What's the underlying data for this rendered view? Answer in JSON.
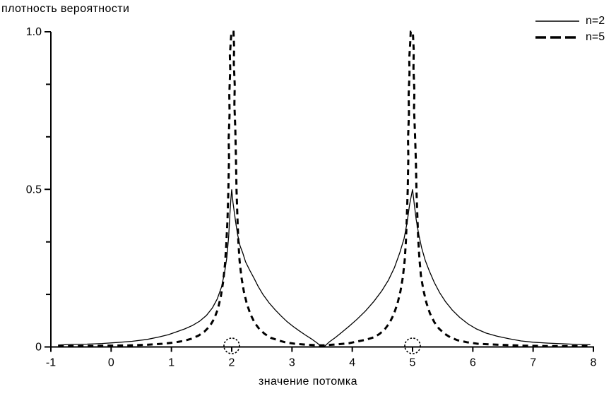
{
  "colors": {
    "foreground": "#000000",
    "background": "#ffffff"
  },
  "chart_data": {
    "type": "line",
    "title": "плотность вероятности",
    "xlabel": "значение потомка",
    "ylabel": "",
    "xlim": [
      -1,
      8
    ],
    "ylim": [
      0,
      1
    ],
    "grid": false,
    "legend_position": "top-right",
    "x_ticks": [
      -1,
      0,
      1,
      2,
      3,
      4,
      5,
      6,
      7,
      8
    ],
    "y_major_ticks": [
      0,
      0.5,
      1.0
    ],
    "y_major_tick_labels": [
      "0",
      "0.5",
      "1.0"
    ],
    "y_minor_ticks": [
      0.1667,
      0.3333,
      0.6667,
      0.8333
    ],
    "parent_markers": [
      2,
      5
    ],
    "peaks": [
      {
        "x": 2,
        "n2_height": 0.5,
        "n5_height": 1.0
      },
      {
        "x": 5,
        "n2_height": 0.5,
        "n5_height": 1.0
      }
    ],
    "series": [
      {
        "name": "n=2",
        "style": "solid",
        "points": [
          [
            -0.88,
            0.006
          ],
          [
            -0.65,
            0.008
          ],
          [
            -0.4,
            0.009
          ],
          [
            -0.15,
            0.011
          ],
          [
            0.1,
            0.014
          ],
          [
            0.35,
            0.018
          ],
          [
            0.6,
            0.024
          ],
          [
            0.8,
            0.032
          ],
          [
            0.95,
            0.039
          ],
          [
            1.1,
            0.049
          ],
          [
            1.22,
            0.057
          ],
          [
            1.35,
            0.068
          ],
          [
            1.47,
            0.082
          ],
          [
            1.58,
            0.1
          ],
          [
            1.68,
            0.124
          ],
          [
            1.76,
            0.152
          ],
          [
            1.83,
            0.19
          ],
          [
            1.88,
            0.235
          ],
          [
            1.92,
            0.285
          ],
          [
            1.95,
            0.35
          ],
          [
            1.97,
            0.42
          ],
          [
            1.985,
            0.465
          ],
          [
            2.0,
            0.5
          ],
          [
            2.02,
            0.46
          ],
          [
            2.045,
            0.425
          ],
          [
            2.07,
            0.39
          ],
          [
            2.1,
            0.355
          ],
          [
            2.14,
            0.32
          ],
          [
            2.18,
            0.3
          ],
          [
            2.23,
            0.27
          ],
          [
            2.3,
            0.243
          ],
          [
            2.37,
            0.218
          ],
          [
            2.44,
            0.192
          ],
          [
            2.52,
            0.166
          ],
          [
            2.62,
            0.14
          ],
          [
            2.72,
            0.118
          ],
          [
            2.82,
            0.098
          ],
          [
            2.92,
            0.08
          ],
          [
            3.02,
            0.065
          ],
          [
            3.12,
            0.051
          ],
          [
            3.22,
            0.038
          ],
          [
            3.32,
            0.026
          ],
          [
            3.42,
            0.012
          ],
          [
            3.48,
            0.002
          ],
          [
            3.54,
            0.002
          ],
          [
            3.62,
            0.016
          ],
          [
            3.72,
            0.03
          ],
          [
            3.83,
            0.047
          ],
          [
            3.95,
            0.066
          ],
          [
            4.08,
            0.088
          ],
          [
            4.22,
            0.114
          ],
          [
            4.36,
            0.145
          ],
          [
            4.49,
            0.178
          ],
          [
            4.6,
            0.212
          ],
          [
            4.7,
            0.252
          ],
          [
            4.79,
            0.3
          ],
          [
            4.86,
            0.345
          ],
          [
            4.91,
            0.395
          ],
          [
            4.95,
            0.45
          ],
          [
            5.0,
            0.5
          ],
          [
            5.03,
            0.45
          ],
          [
            5.06,
            0.405
          ],
          [
            5.1,
            0.36
          ],
          [
            5.15,
            0.315
          ],
          [
            5.21,
            0.275
          ],
          [
            5.28,
            0.24
          ],
          [
            5.36,
            0.205
          ],
          [
            5.45,
            0.172
          ],
          [
            5.55,
            0.143
          ],
          [
            5.66,
            0.117
          ],
          [
            5.78,
            0.094
          ],
          [
            5.92,
            0.073
          ],
          [
            6.06,
            0.057
          ],
          [
            6.22,
            0.044
          ],
          [
            6.4,
            0.034
          ],
          [
            6.6,
            0.026
          ],
          [
            6.8,
            0.019
          ],
          [
            7.0,
            0.015
          ],
          [
            7.25,
            0.012
          ],
          [
            7.5,
            0.01
          ],
          [
            7.72,
            0.008
          ],
          [
            7.95,
            0.007
          ]
        ]
      },
      {
        "name": "n=5",
        "style": "dashed",
        "points": [
          [
            -0.88,
            0.003
          ],
          [
            -0.5,
            0.003
          ],
          [
            -0.1,
            0.004
          ],
          [
            0.3,
            0.005
          ],
          [
            0.6,
            0.007
          ],
          [
            0.85,
            0.01
          ],
          [
            1.05,
            0.014
          ],
          [
            1.2,
            0.019
          ],
          [
            1.33,
            0.026
          ],
          [
            1.45,
            0.036
          ],
          [
            1.55,
            0.049
          ],
          [
            1.64,
            0.067
          ],
          [
            1.71,
            0.09
          ],
          [
            1.77,
            0.12
          ],
          [
            1.82,
            0.16
          ],
          [
            1.86,
            0.21
          ],
          [
            1.89,
            0.265
          ],
          [
            1.91,
            0.325
          ],
          [
            1.93,
            0.4
          ],
          [
            1.945,
            0.5
          ],
          [
            1.955,
            0.6
          ],
          [
            1.95,
            0.66
          ],
          [
            1.965,
            0.74
          ],
          [
            1.96,
            0.8
          ],
          [
            1.975,
            0.88
          ],
          [
            1.97,
            0.925
          ],
          [
            1.985,
            0.97
          ],
          [
            1.995,
            1.0
          ],
          [
            2.03,
            1.0
          ],
          [
            2.04,
            0.95
          ],
          [
            2.035,
            0.9
          ],
          [
            2.05,
            0.83
          ],
          [
            2.045,
            0.77
          ],
          [
            2.06,
            0.69
          ],
          [
            2.07,
            0.6
          ],
          [
            2.08,
            0.5
          ],
          [
            2.095,
            0.41
          ],
          [
            2.11,
            0.335
          ],
          [
            2.13,
            0.275
          ],
          [
            2.16,
            0.222
          ],
          [
            2.2,
            0.177
          ],
          [
            2.25,
            0.138
          ],
          [
            2.31,
            0.104
          ],
          [
            2.38,
            0.077
          ],
          [
            2.46,
            0.056
          ],
          [
            2.55,
            0.041
          ],
          [
            2.65,
            0.029
          ],
          [
            2.77,
            0.021
          ],
          [
            2.9,
            0.014
          ],
          [
            3.05,
            0.01
          ],
          [
            3.25,
            0.007
          ],
          [
            3.5,
            0.005
          ],
          [
            3.75,
            0.008
          ],
          [
            3.95,
            0.012
          ],
          [
            4.1,
            0.018
          ],
          [
            4.23,
            0.023
          ],
          [
            4.35,
            0.03
          ],
          [
            4.45,
            0.041
          ],
          [
            4.54,
            0.056
          ],
          [
            4.62,
            0.077
          ],
          [
            4.69,
            0.104
          ],
          [
            4.75,
            0.138
          ],
          [
            4.8,
            0.177
          ],
          [
            4.84,
            0.222
          ],
          [
            4.87,
            0.275
          ],
          [
            4.89,
            0.335
          ],
          [
            4.905,
            0.41
          ],
          [
            4.92,
            0.5
          ],
          [
            4.93,
            0.6
          ],
          [
            4.925,
            0.66
          ],
          [
            4.94,
            0.74
          ],
          [
            4.935,
            0.8
          ],
          [
            4.95,
            0.87
          ],
          [
            4.945,
            0.915
          ],
          [
            4.96,
            0.96
          ],
          [
            4.97,
            1.0
          ],
          [
            5.005,
            1.0
          ],
          [
            5.02,
            0.94
          ],
          [
            5.015,
            0.885
          ],
          [
            5.03,
            0.81
          ],
          [
            5.025,
            0.755
          ],
          [
            5.04,
            0.68
          ],
          [
            5.055,
            0.59
          ],
          [
            5.065,
            0.5
          ],
          [
            5.08,
            0.415
          ],
          [
            5.095,
            0.34
          ],
          [
            5.115,
            0.278
          ],
          [
            5.14,
            0.225
          ],
          [
            5.18,
            0.18
          ],
          [
            5.23,
            0.14
          ],
          [
            5.29,
            0.106
          ],
          [
            5.36,
            0.079
          ],
          [
            5.44,
            0.058
          ],
          [
            5.53,
            0.042
          ],
          [
            5.63,
            0.03
          ],
          [
            5.75,
            0.021
          ],
          [
            5.9,
            0.015
          ],
          [
            6.08,
            0.01
          ],
          [
            6.3,
            0.008
          ],
          [
            6.55,
            0.006
          ],
          [
            6.85,
            0.004
          ],
          [
            7.2,
            0.003
          ],
          [
            7.6,
            0.003
          ],
          [
            7.95,
            0.003
          ]
        ]
      }
    ]
  }
}
